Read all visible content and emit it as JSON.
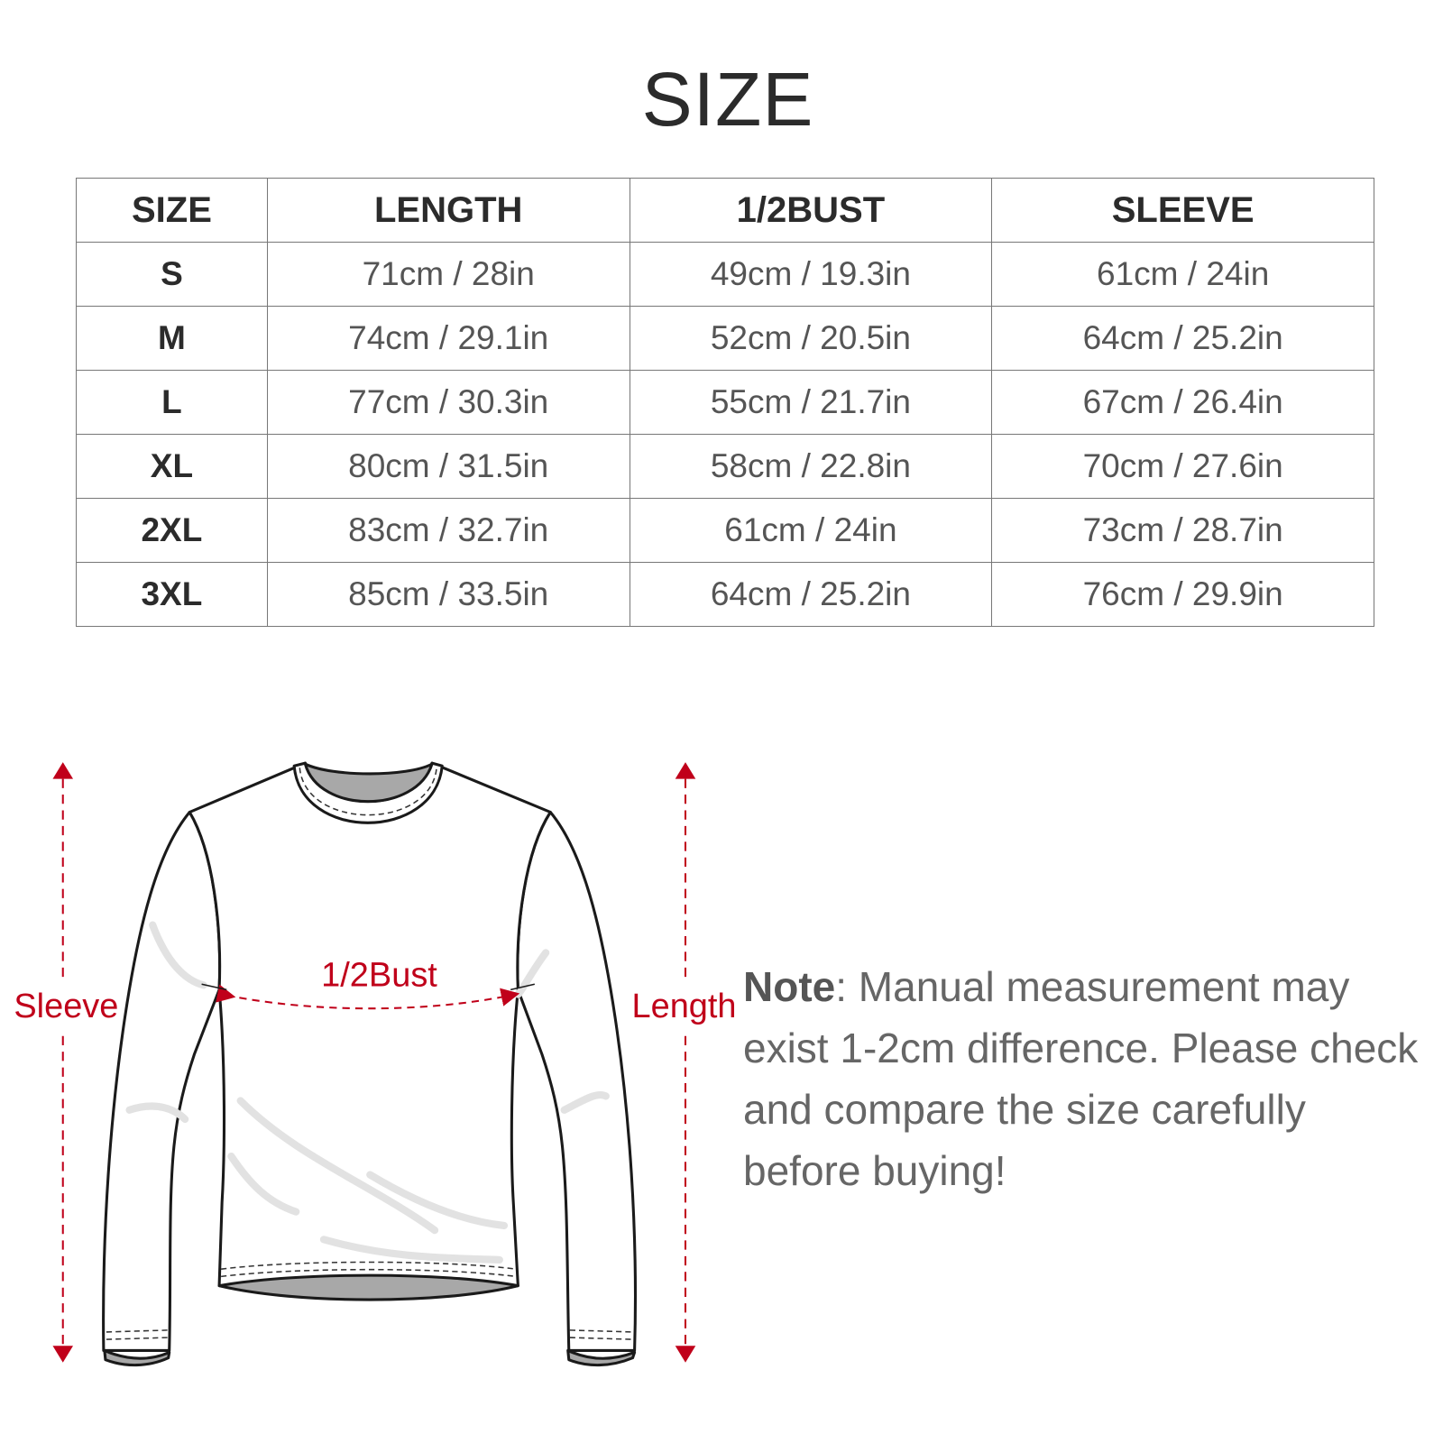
{
  "title": "SIZE",
  "table": {
    "headers": [
      "SIZE",
      "LENGTH",
      "1/2BUST",
      "SLEEVE"
    ],
    "rows": [
      [
        "S",
        "71cm / 28in",
        "49cm / 19.3in",
        "61cm / 24in"
      ],
      [
        "M",
        "74cm / 29.1in",
        "52cm / 20.5in",
        "64cm / 25.2in"
      ],
      [
        "L",
        "77cm / 30.3in",
        "55cm / 21.7in",
        "67cm / 26.4in"
      ],
      [
        "XL",
        "80cm / 31.5in",
        "58cm / 22.8in",
        "70cm / 27.6in"
      ],
      [
        "2XL",
        "83cm / 32.7in",
        "61cm / 24in",
        "73cm / 28.7in"
      ],
      [
        "3XL",
        "85cm / 33.5in",
        "64cm / 25.2in",
        "76cm / 29.9in"
      ]
    ]
  },
  "diagram": {
    "sleeve_label": "Sleeve",
    "length_label": "Length",
    "bust_label": "1/2Bust"
  },
  "note": {
    "label": "Note",
    "text": ": Manual measurement may exist 1-2cm difference. Please check and compare the size carefully before buying!"
  },
  "colors": {
    "accent": "#c0001a",
    "text": "#2b2b2b",
    "muted": "#666666"
  }
}
